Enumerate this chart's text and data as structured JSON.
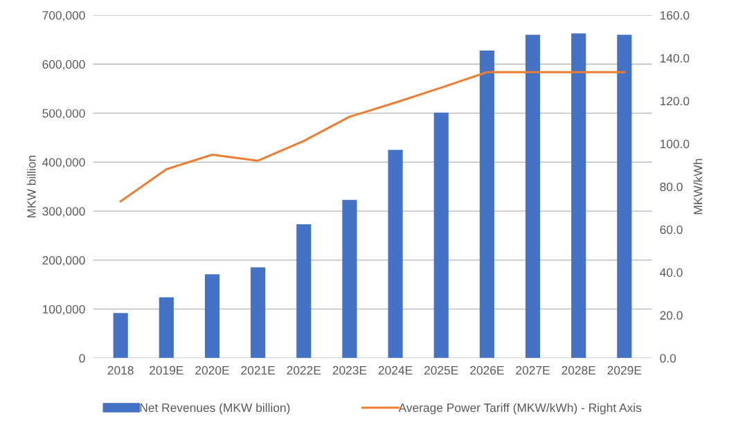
{
  "chart_data": {
    "type": "bar",
    "categories": [
      "2018",
      "2019E",
      "2020E",
      "2021E",
      "2022E",
      "2023E",
      "2024E",
      "2025E",
      "2026E",
      "2027E",
      "2028E",
      "2029E"
    ],
    "series": [
      {
        "name": "Net Revenues (MKW billion)",
        "color": "#4472c4",
        "values": [
          92000,
          124000,
          171000,
          185000,
          273000,
          323000,
          425000,
          501000,
          628000,
          660000,
          663000,
          660000
        ]
      },
      {
        "name": "Average Power Tariff (MKW/kWh) - Right Axis",
        "type": "line",
        "axis": "y2",
        "color": "#ed7d31",
        "values": [
          73.1,
          88.1,
          94.9,
          92.1,
          101.3,
          112.6,
          119.2,
          126.2,
          133.4,
          133.4,
          133.4,
          133.4
        ]
      }
    ],
    "ylabel": "MKW billion",
    "y2label": "MKW/kWh",
    "ylim": [
      0,
      700000
    ],
    "yticks": [
      {
        "value": 0,
        "label": "0"
      },
      {
        "value": 100000,
        "label": "100,000"
      },
      {
        "value": 200000,
        "label": "200,000"
      },
      {
        "value": 300000,
        "label": "300,000"
      },
      {
        "value": 400000,
        "label": "400,000"
      },
      {
        "value": 500000,
        "label": "500,000"
      },
      {
        "value": 600000,
        "label": "600,000"
      },
      {
        "value": 700000,
        "label": "700,000"
      }
    ],
    "y2lim": [
      0,
      160
    ],
    "y2ticks": [
      {
        "value": 0,
        "label": "0.0"
      },
      {
        "value": 20,
        "label": "20.0"
      },
      {
        "value": 40,
        "label": "40.0"
      },
      {
        "value": 60,
        "label": "60.0"
      },
      {
        "value": 80,
        "label": "80.0"
      },
      {
        "value": 100,
        "label": "100.0"
      },
      {
        "value": 120,
        "label": "120.0"
      },
      {
        "value": 140,
        "label": "140.0"
      },
      {
        "value": 160,
        "label": "160.0"
      }
    ],
    "grid": "y",
    "legend": "bottom",
    "marker": "none",
    "line_style": "solid"
  }
}
